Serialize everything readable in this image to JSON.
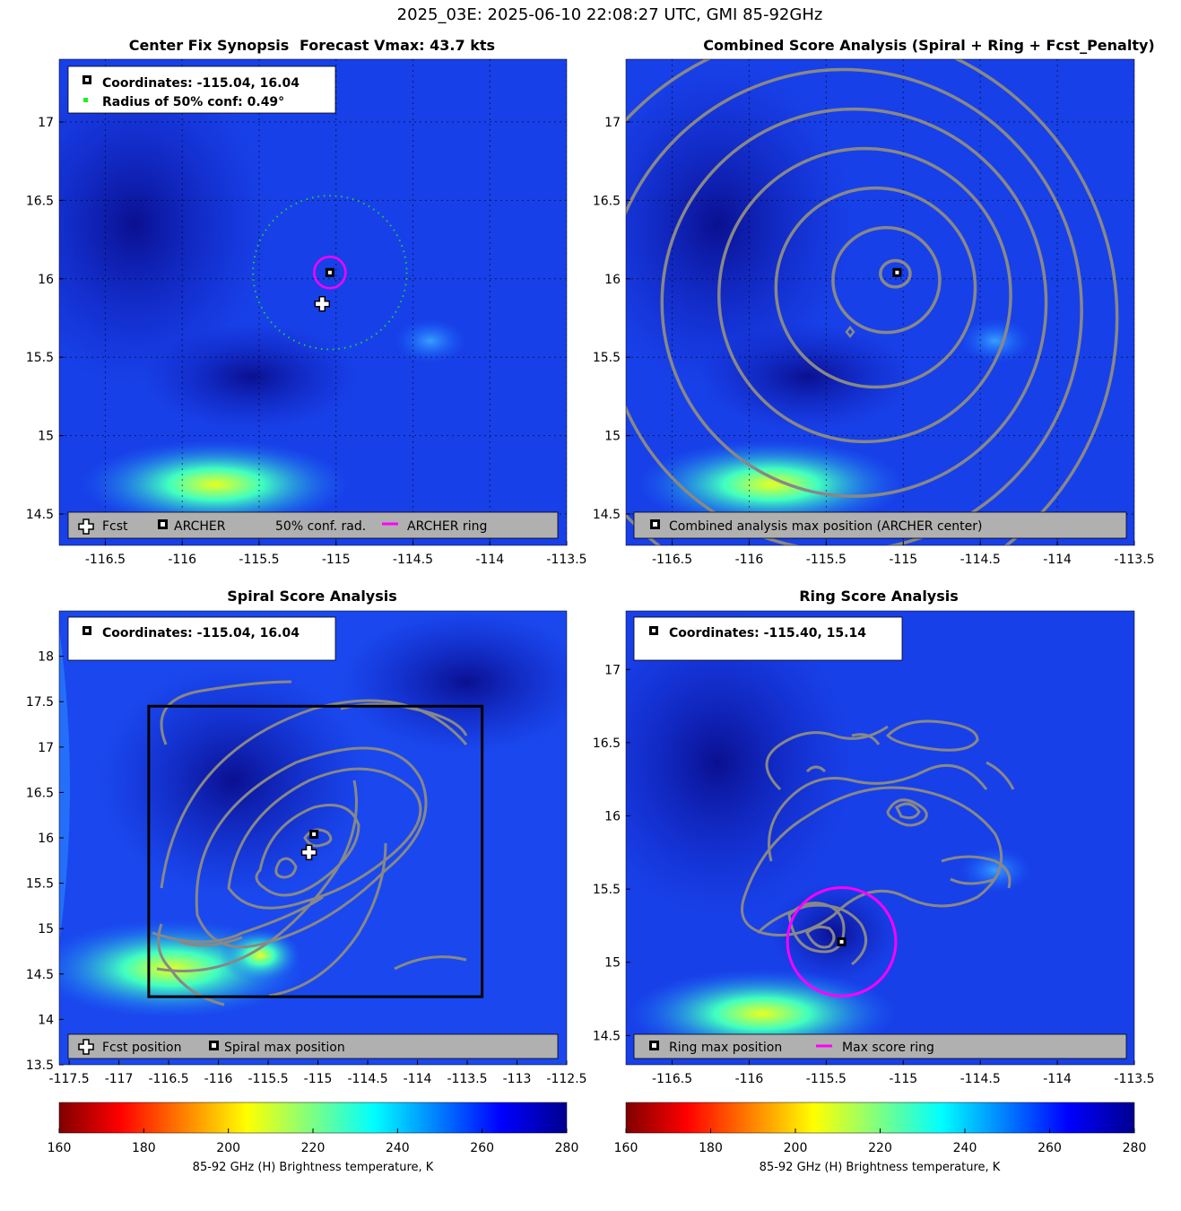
{
  "figure_title": "2025_03E: 2025-06-10 22:08:27 UTC, GMI 85-92GHz",
  "panels": {
    "synopsis": {
      "title_left": "Center Fix Synopsis",
      "title_right": "Forecast Vmax: 43.7 kts",
      "info_line1": "Coordinates: -115.04, 16.04",
      "info_line2": "Radius of 50% conf: 0.49°",
      "legend": [
        "Fcst",
        "ARCHER",
        "50% conf. rad.",
        "ARCHER ring"
      ]
    },
    "combined": {
      "title": "Combined Score Analysis (Spiral + Ring + Fcst_Penalty)",
      "legend": [
        "Combined analysis max position (ARCHER center)"
      ]
    },
    "spiral": {
      "title": "Spiral Score Analysis",
      "info_line1": "Coordinates: -115.04, 16.04",
      "legend": [
        "Fcst position",
        "Spiral max position"
      ]
    },
    "ring": {
      "title": "Ring Score Analysis",
      "info_line1": "Coordinates: -115.40, 15.14",
      "legend": [
        "Ring max position",
        "Max score ring"
      ]
    }
  },
  "colorbar": {
    "label": "85-92 GHz (H) Brightness temperature, K",
    "ticks": [
      "160",
      "180",
      "200",
      "220",
      "240",
      "260",
      "280"
    ]
  },
  "colors": {
    "archer_ring": "#ff00ff",
    "conf_circle": "#22cc44",
    "contour": "#888888",
    "legend_bg": "#b0b0b0"
  },
  "chart_data": [
    {
      "type": "heatmap",
      "name": "synopsis",
      "xlim": [
        -116.8,
        -113.5
      ],
      "ylim": [
        14.3,
        17.4
      ],
      "xticks": [
        -116.5,
        -116,
        -115.5,
        -115,
        -114.5,
        -114,
        -113.5
      ],
      "yticks": [
        14.5,
        15,
        15.5,
        16,
        16.5,
        17
      ],
      "archer_center": [
        -115.04,
        16.04
      ],
      "forecast_position": [
        -115.09,
        15.84
      ],
      "conf_radius_deg": 0.49,
      "archer_ring_radius_deg": 0.1,
      "grid": true
    },
    {
      "type": "heatmap",
      "name": "combined",
      "xlim": [
        -116.8,
        -113.5
      ],
      "ylim": [
        14.3,
        17.4
      ],
      "xticks": [
        -116.5,
        -116,
        -115.5,
        -115,
        -114.5,
        -114,
        -113.5
      ],
      "yticks": [
        14.5,
        15,
        15.5,
        16,
        16.5,
        17
      ],
      "archer_center": [
        -115.04,
        16.04
      ],
      "contour_radii_deg": [
        0.05,
        0.3,
        0.6,
        0.9,
        1.2,
        1.5,
        1.8
      ],
      "grid": true
    },
    {
      "type": "heatmap",
      "name": "spiral",
      "xlim": [
        -117.6,
        -112.5
      ],
      "ylim": [
        13.5,
        18.5
      ],
      "xticks": [
        -117.5,
        -117,
        -116.5,
        -116,
        -115.5,
        -115,
        -114.5,
        -114,
        -113.5,
        -113,
        -112.5
      ],
      "yticks": [
        13.5,
        14,
        14.5,
        15,
        15.5,
        16,
        16.5,
        17,
        17.5,
        18
      ],
      "spiral_max": [
        -115.04,
        16.04
      ],
      "forecast_position": [
        -115.09,
        15.84
      ],
      "search_box": [
        -116.7,
        14.25,
        -113.35,
        17.45
      ],
      "grid": false
    },
    {
      "type": "heatmap",
      "name": "ring",
      "xlim": [
        -116.8,
        -113.5
      ],
      "ylim": [
        14.3,
        17.4
      ],
      "xticks": [
        -116.5,
        -116,
        -115.5,
        -115,
        -114.5,
        -114,
        -113.5
      ],
      "yticks": [
        14.5,
        15,
        15.5,
        16,
        16.5,
        17
      ],
      "ring_max": [
        -115.4,
        15.14
      ],
      "max_score_ring_radius_deg": 0.37,
      "grid": false
    }
  ]
}
